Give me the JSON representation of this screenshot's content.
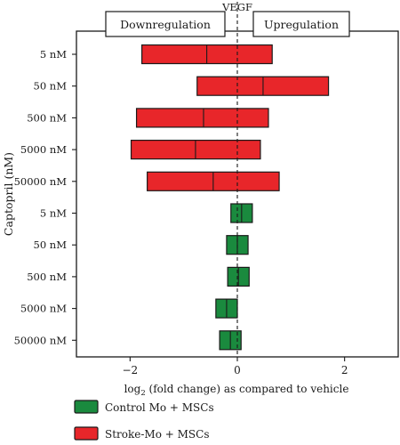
{
  "chart_data": {
    "type": "bar",
    "title": "VEGF",
    "xlabel_main": "log",
    "xlabel_sub": "2",
    "xlabel_rest": " (fold change) as compared to vehicle",
    "ylabel": "Captopril (nM)",
    "xlim": [
      -3,
      3
    ],
    "xticks": [
      -2,
      0,
      2
    ],
    "xtick_labels": [
      "−2",
      "0",
      "2"
    ],
    "annotations": {
      "left": "Downregulation",
      "right": "Upregulation"
    },
    "categories": [
      "5 nM",
      "50 nM",
      "500 nM",
      "5000 nM",
      "50000 nM",
      "5 nM",
      "50 nM",
      "500 nM",
      "5000 nM",
      "50000 nM"
    ],
    "series": [
      {
        "name": "Stroke-Mo + MSCs",
        "color": "#e8262a",
        "rows": [
          0,
          1,
          2,
          3,
          4
        ],
        "min": [
          -1.78,
          -0.75,
          -1.88,
          -1.98,
          -1.68
        ],
        "mean": [
          -0.57,
          0.48,
          -0.63,
          -0.78,
          -0.45
        ],
        "max": [
          0.65,
          1.7,
          0.58,
          0.43,
          0.78
        ]
      },
      {
        "name": "Control Mo + MSCs",
        "color": "#1a8a3e",
        "rows": [
          5,
          6,
          7,
          8,
          9
        ],
        "min": [
          -0.12,
          -0.2,
          -0.18,
          -0.4,
          -0.33
        ],
        "mean": [
          0.08,
          0.0,
          0.02,
          -0.2,
          -0.13
        ],
        "max": [
          0.28,
          0.2,
          0.22,
          0.0,
          0.07
        ]
      }
    ],
    "legend": [
      {
        "label": "Control Mo + MSCs",
        "color": "#1a8a3e"
      },
      {
        "label": "Stroke-Mo + MSCs",
        "color": "#e8262a"
      }
    ]
  }
}
